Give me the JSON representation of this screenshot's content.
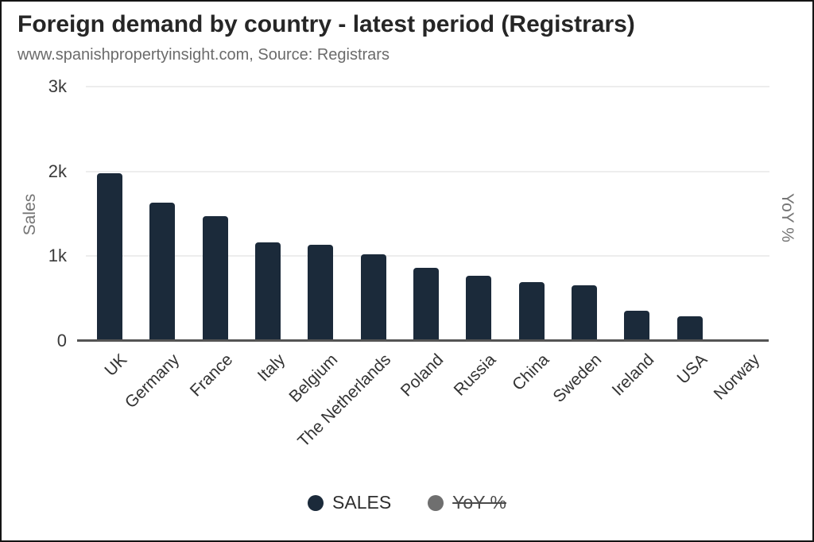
{
  "header": {
    "title": "Foreign demand by country - latest period (Registrars)",
    "subtitle": "www.spanishpropertyinsight.com, Source: Registrars"
  },
  "chart_data": {
    "type": "bar",
    "title": "Foreign demand by country - latest period (Registrars)",
    "subtitle": "www.spanishpropertyinsight.com, Source: Registrars",
    "categories": [
      "UK",
      "Germany",
      "France",
      "Italy",
      "Belgium",
      "The Netherlands",
      "Poland",
      "Russia",
      "China",
      "Sweden",
      "Ireland",
      "USA",
      "Norway"
    ],
    "series": [
      {
        "name": "SALES",
        "values": [
          1980,
          1630,
          1475,
          1165,
          1135,
          1025,
          865,
          765,
          690,
          655,
          355,
          290,
          0
        ],
        "color": "#1b2a3a",
        "visible": true
      },
      {
        "name": "YoY %",
        "values": [],
        "color": "#6f6f6f",
        "visible": false
      }
    ],
    "ylabel": "Sales",
    "ylabel_right": "YoY %",
    "xlabel": "",
    "ylim": [
      0,
      3000
    ],
    "yticks": [
      {
        "value": 0,
        "label": "0"
      },
      {
        "value": 1000,
        "label": "1k"
      },
      {
        "value": 2000,
        "label": "2k"
      },
      {
        "value": 3000,
        "label": "3k"
      }
    ],
    "grid": true,
    "legend_position": "bottom"
  },
  "legend": {
    "items": [
      {
        "label": "SALES",
        "color": "#1b2a3a",
        "struck": false
      },
      {
        "label": "YoY %",
        "color": "#6f6f6f",
        "struck": true
      }
    ]
  },
  "colors": {
    "bar": "#1b2a3a",
    "disabled_series": "#6f6f6f",
    "gridline": "#ededed",
    "axis_line": "#545454"
  }
}
